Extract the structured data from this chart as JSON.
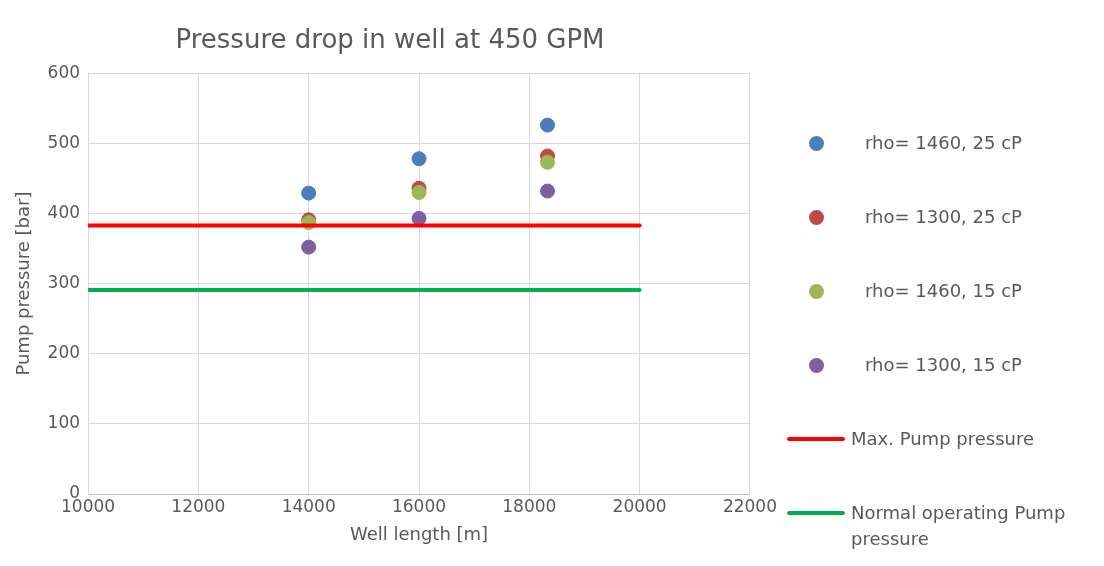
{
  "chart_data": {
    "type": "scatter",
    "title": "Pressure drop in well at 450 GPM",
    "xlabel": "Well length [m]",
    "ylabel": "Pump pressure [bar]",
    "xlim": [
      10000,
      22000
    ],
    "xticks": [
      10000,
      12000,
      14000,
      16000,
      18000,
      20000,
      22000
    ],
    "ylim": [
      0,
      600
    ],
    "yticks": [
      0,
      100,
      200,
      300,
      400,
      500,
      600
    ],
    "grid": true,
    "legend": "right",
    "marker": "circle",
    "series": [
      {
        "name": "rho= 1460, 25 cP",
        "color": "#4a7ebb",
        "x": [
          14000,
          16000,
          18330
        ],
        "values": [
          429,
          478,
          526
        ]
      },
      {
        "name": "rho= 1300, 25 cP",
        "color": "#be4b48",
        "x": [
          14000,
          16000,
          18330
        ],
        "values": [
          391,
          436,
          482
        ]
      },
      {
        "name": "rho= 1460, 15 cP",
        "color": "#98b954",
        "x": [
          14000,
          16000,
          18330
        ],
        "values": [
          387,
          430,
          473
        ]
      },
      {
        "name": "rho= 1300, 15 cP",
        "color": "#7d60a0",
        "x": [
          14000,
          16000,
          18330
        ],
        "values": [
          352,
          393,
          432
        ]
      },
      {
        "name": "Max. Pump pressure",
        "type": "line",
        "marker": "none",
        "color": "#ff0000",
        "x": [
          10000,
          20000
        ],
        "values": [
          383,
          383
        ]
      },
      {
        "name": "Normal operating Pump pressure",
        "type": "line",
        "marker": "none",
        "color": "#00b050",
        "x": [
          10000,
          20000
        ],
        "values": [
          291,
          291
        ]
      }
    ]
  }
}
